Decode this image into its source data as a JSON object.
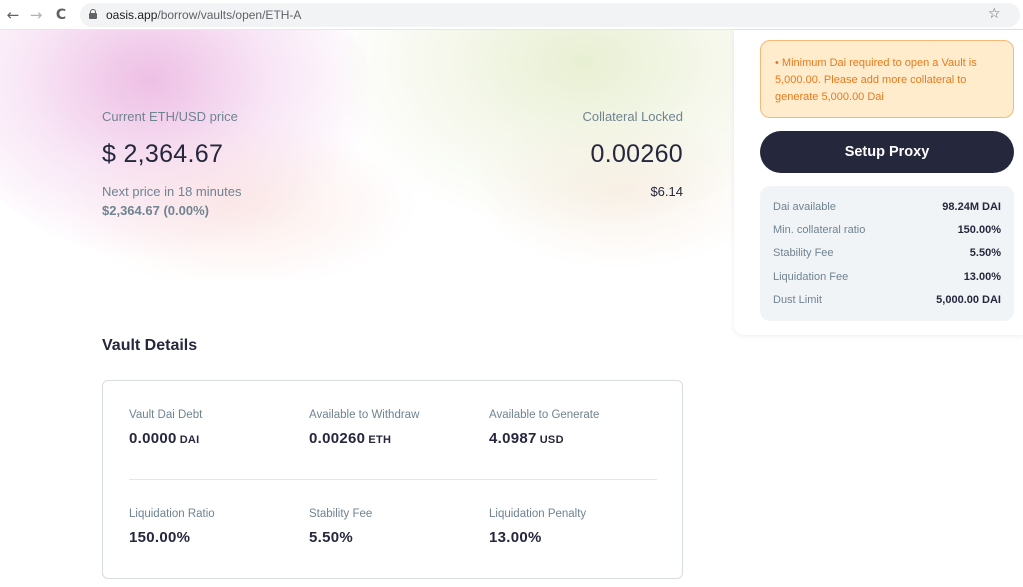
{
  "browser": {
    "url_host": "oasis.app",
    "url_path": "/borrow/vaults/open/ETH-A",
    "back_icon": "←",
    "forward_icon": "→",
    "reload_icon": "C",
    "star_icon": "☆"
  },
  "price": {
    "label": "Current ETH/USD price",
    "value": "$ 2,364.67",
    "next_label": "Next price in 18 minutes",
    "next_value": "$2,364.67  (0.00%)"
  },
  "collateral": {
    "label": "Collateral Locked",
    "value": "0.00260",
    "usd": "$6.14"
  },
  "vault": {
    "title": "Vault Details",
    "cells": [
      {
        "label": "Vault Dai Debt",
        "value": "0.0000",
        "unit": "DAI"
      },
      {
        "label": "Available to Withdraw",
        "value": "0.00260",
        "unit": "ETH"
      },
      {
        "label": "Available to Generate",
        "value": "4.0987",
        "unit": "USD"
      },
      {
        "label": "Liquidation Ratio",
        "value": "150.00%",
        "unit": ""
      },
      {
        "label": "Stability Fee",
        "value": "5.50%",
        "unit": ""
      },
      {
        "label": "Liquidation Penalty",
        "value": "13.00%",
        "unit": ""
      }
    ]
  },
  "sidebar": {
    "warning": "• Minimum Dai required to open a Vault is 5,000.00. Please add more collateral to generate 5,000.00 Dai",
    "button_label": "Setup Proxy",
    "info": [
      {
        "label": "Dai available",
        "value": "98.24M DAI"
      },
      {
        "label": "Min. collateral ratio",
        "value": "150.00%"
      },
      {
        "label": "Stability Fee",
        "value": "5.50%"
      },
      {
        "label": "Liquidation Fee",
        "value": "13.00%"
      },
      {
        "label": "Dust Limit",
        "value": "5,000.00 DAI"
      }
    ]
  },
  "colors": {
    "primary": "#25273d",
    "muted": "#708390",
    "warning_bg": "#ffeccd",
    "warning_text": "#e57b1e"
  }
}
